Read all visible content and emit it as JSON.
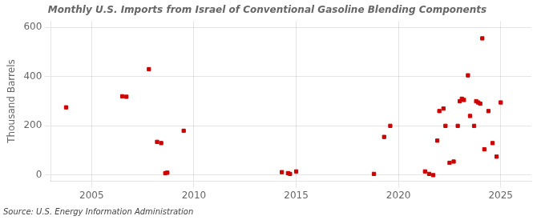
{
  "chart_data": {
    "type": "scatter",
    "title": "Monthly U.S. Imports from Israel of Conventional Gasoline Blending Components",
    "y_label": "Thousand Barrels",
    "source": "Source: U.S. Energy Information Administration",
    "x": [
      2003.75,
      2006.5,
      2006.7,
      2007.8,
      2008.2,
      2008.4,
      2008.6,
      2008.7,
      2009.5,
      2014.3,
      2014.6,
      2014.7,
      2015.0,
      2018.8,
      2019.3,
      2019.6,
      2021.3,
      2021.5,
      2021.7,
      2021.9,
      2022.0,
      2022.2,
      2022.3,
      2022.5,
      2022.7,
      2022.9,
      2023.0,
      2023.1,
      2023.2,
      2023.4,
      2023.5,
      2023.7,
      2023.8,
      2023.9,
      2024.0,
      2024.1,
      2024.2,
      2024.4,
      2024.6,
      2024.8,
      2025.0
    ],
    "values": [
      275,
      320,
      318,
      430,
      135,
      130,
      8,
      10,
      180,
      12,
      8,
      5,
      15,
      5,
      155,
      200,
      15,
      5,
      0,
      140,
      260,
      270,
      200,
      50,
      55,
      200,
      300,
      310,
      305,
      405,
      240,
      200,
      300,
      295,
      290,
      555,
      105,
      260,
      130,
      75,
      295
    ],
    "color": "#cc0000",
    "marker": "square",
    "xlim": [
      2003.0,
      2026.5
    ],
    "xticks": [
      2005,
      2010,
      2015,
      2020,
      2025
    ],
    "ylim": [
      -25,
      625
    ],
    "yticks": [
      0,
      200,
      400,
      600
    ],
    "grid": true
  }
}
